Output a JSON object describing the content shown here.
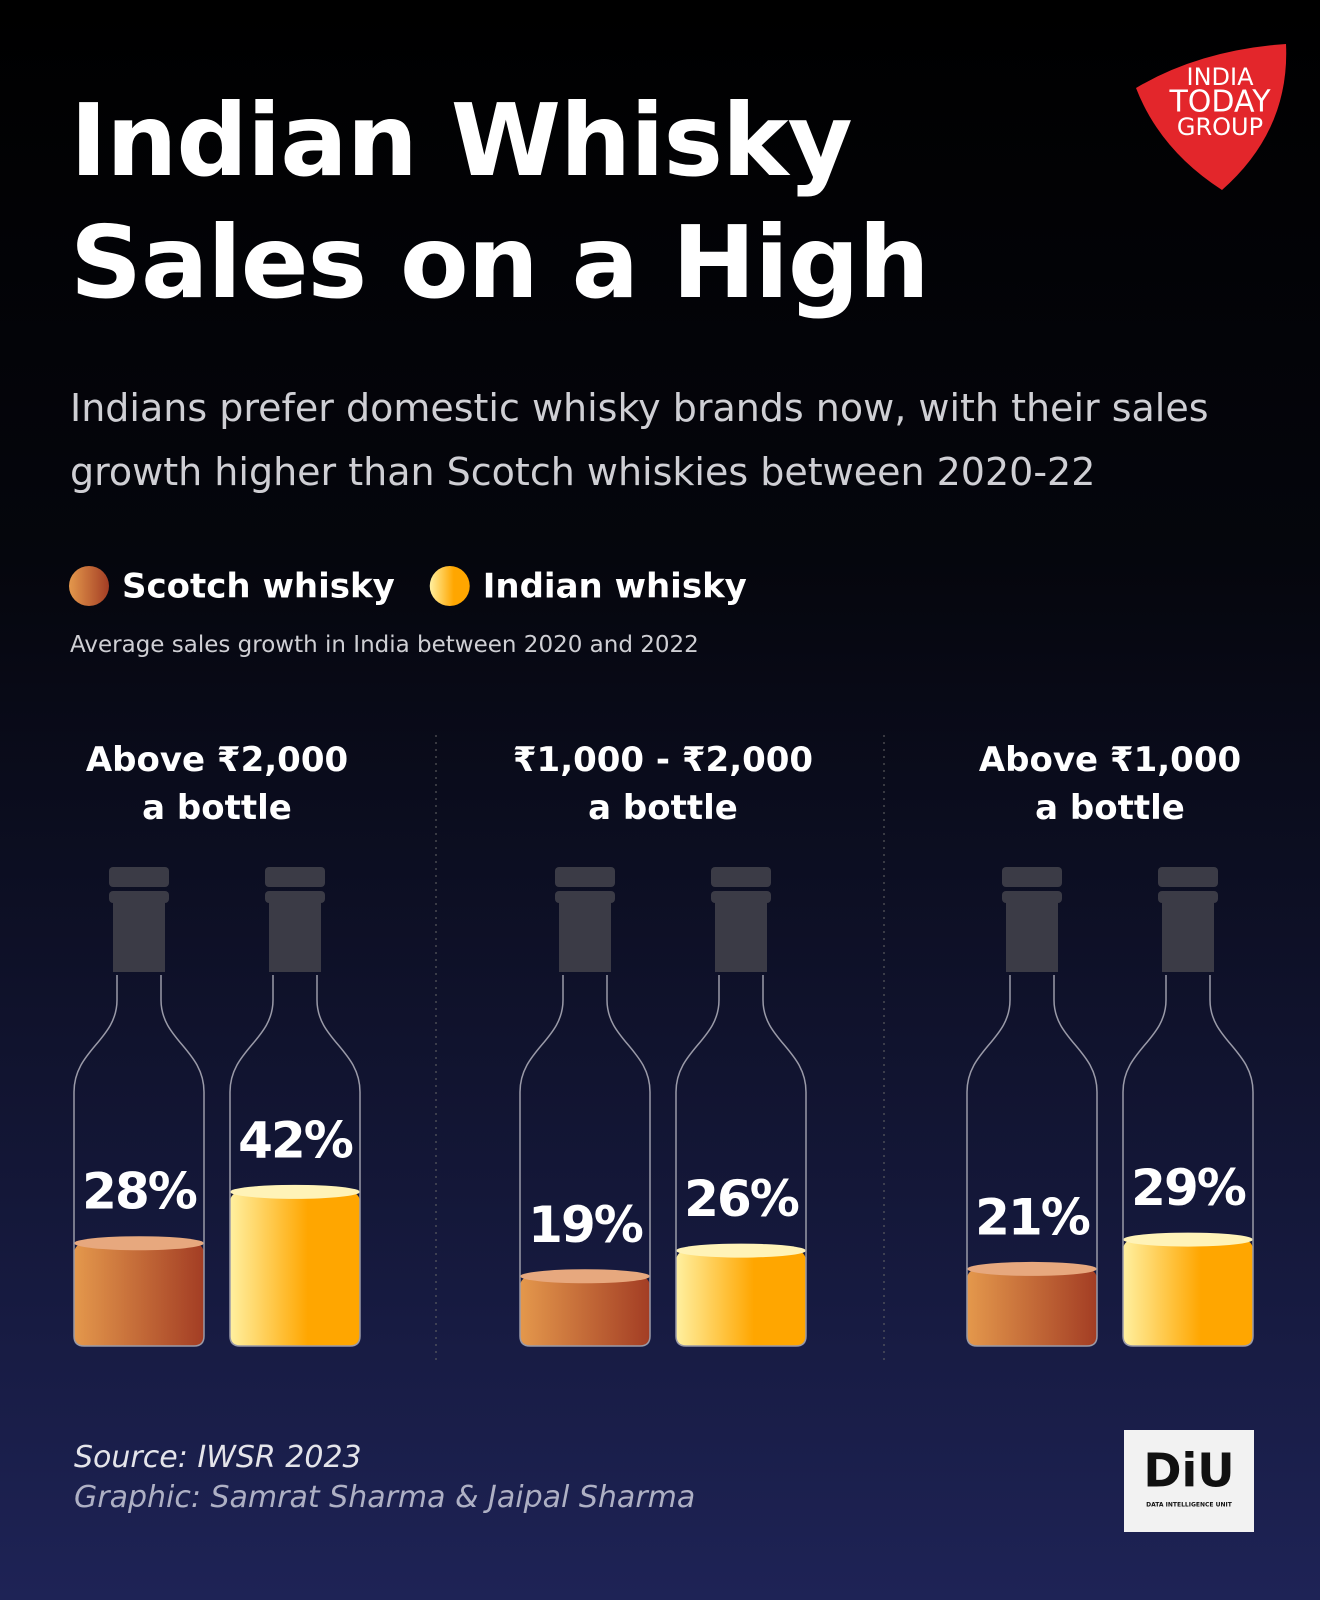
{
  "chart_data": {
    "type": "bar",
    "title": "Indian Whisky\nSales on a High",
    "subtitle": "Indians prefer domestic whisky brands now, with their sales growth higher than Scotch whiskies between 2020-22",
    "note": "Average sales growth in India between 2020 and 2022",
    "categories": [
      "Above ₹2,000\na bottle",
      "₹1,000 - ₹2,000\na bottle",
      "Above ₹1,000\na bottle"
    ],
    "series": [
      {
        "name": "Scotch whisky",
        "color": "#a33d24",
        "values": [
          28,
          19,
          21
        ],
        "value_labels": [
          "28%",
          "19%",
          "21%"
        ]
      },
      {
        "name": "Indian whisky",
        "color": "#ffa600",
        "values": [
          42,
          26,
          29
        ],
        "value_labels": [
          "42%",
          "26%",
          "29%"
        ]
      }
    ],
    "ylim": [
      0,
      100
    ],
    "source": "Source: IWSR 2023",
    "credit": "Graphic: Samrat Sharma & Jaipal Sharma"
  },
  "branding": {
    "logo_lines": [
      "INDIA",
      "TODAY",
      "GROUP"
    ],
    "unit_logo": "DiU",
    "unit_name": "DATA INTELLIGENCE UNIT"
  }
}
